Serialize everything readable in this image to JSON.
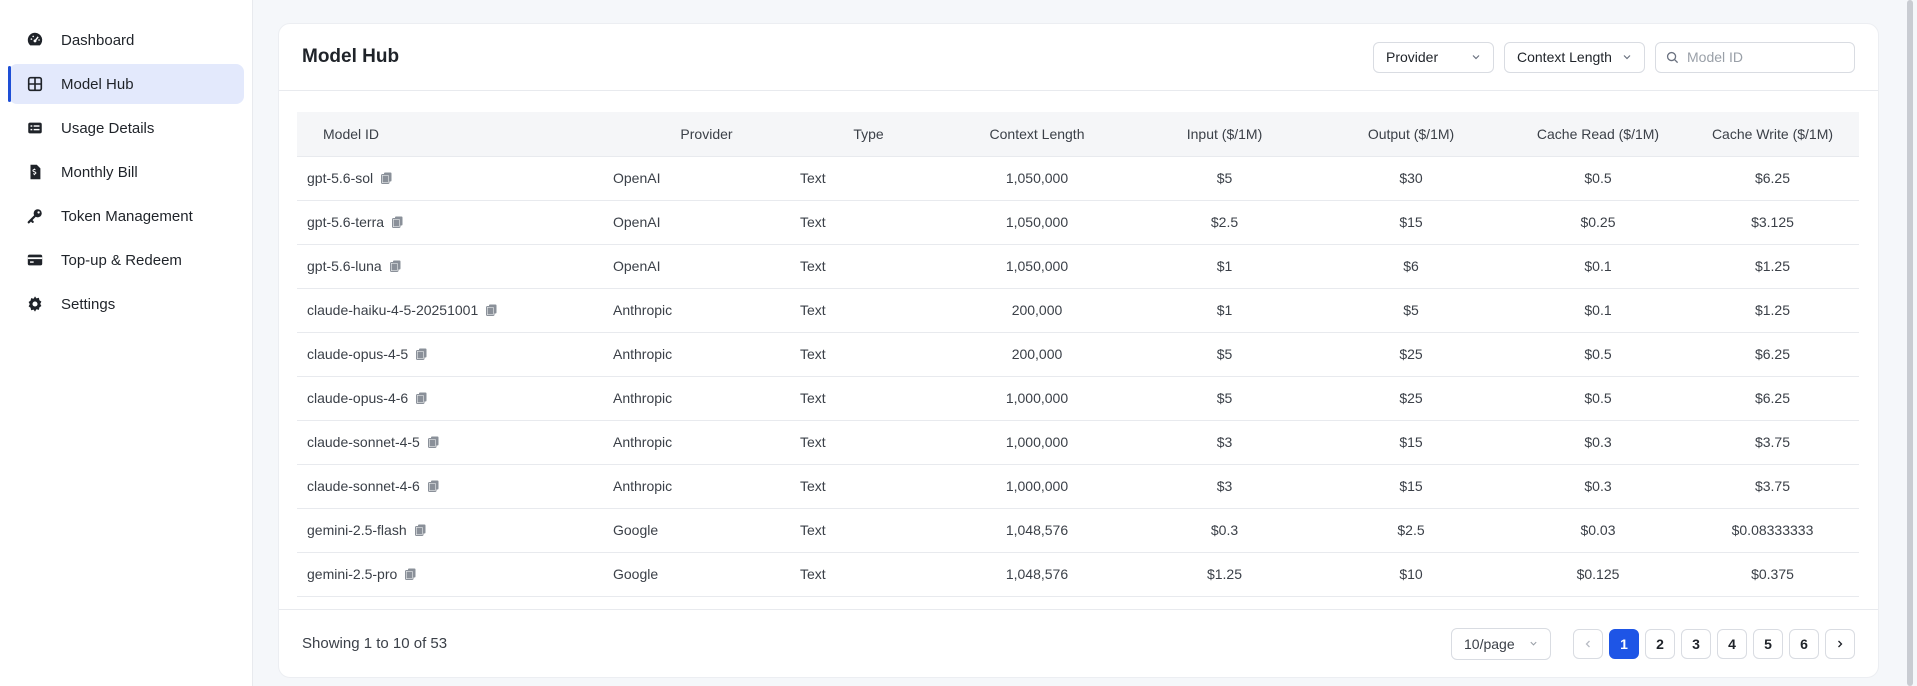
{
  "sidebar": {
    "items": [
      {
        "label": "Dashboard",
        "icon": "dashboard-icon"
      },
      {
        "label": "Model Hub",
        "icon": "grid-icon"
      },
      {
        "label": "Usage Details",
        "icon": "list-icon"
      },
      {
        "label": "Monthly Bill",
        "icon": "bill-icon"
      },
      {
        "label": "Token Management",
        "icon": "key-icon"
      },
      {
        "label": "Top-up & Redeem",
        "icon": "card-icon"
      },
      {
        "label": "Settings",
        "icon": "gear-icon"
      }
    ]
  },
  "header": {
    "title": "Model Hub",
    "provider_filter": "Provider",
    "context_filter": "Context Length",
    "search_placeholder": "Model ID"
  },
  "table": {
    "columns": [
      "Model ID",
      "Provider",
      "Type",
      "Context Length",
      "Input ($/1M)",
      "Output ($/1M)",
      "Cache Read ($/1M)",
      "Cache Write ($/1M)"
    ],
    "rows": [
      [
        "gpt-5.6-sol",
        "OpenAI",
        "Text",
        "1,050,000",
        "$5",
        "$30",
        "$0.5",
        "$6.25"
      ],
      [
        "gpt-5.6-terra",
        "OpenAI",
        "Text",
        "1,050,000",
        "$2.5",
        "$15",
        "$0.25",
        "$3.125"
      ],
      [
        "gpt-5.6-luna",
        "OpenAI",
        "Text",
        "1,050,000",
        "$1",
        "$6",
        "$0.1",
        "$1.25"
      ],
      [
        "claude-haiku-4-5-20251001",
        "Anthropic",
        "Text",
        "200,000",
        "$1",
        "$5",
        "$0.1",
        "$1.25"
      ],
      [
        "claude-opus-4-5",
        "Anthropic",
        "Text",
        "200,000",
        "$5",
        "$25",
        "$0.5",
        "$6.25"
      ],
      [
        "claude-opus-4-6",
        "Anthropic",
        "Text",
        "1,000,000",
        "$5",
        "$25",
        "$0.5",
        "$6.25"
      ],
      [
        "claude-sonnet-4-5",
        "Anthropic",
        "Text",
        "1,000,000",
        "$3",
        "$15",
        "$0.3",
        "$3.75"
      ],
      [
        "claude-sonnet-4-6",
        "Anthropic",
        "Text",
        "1,000,000",
        "$3",
        "$15",
        "$0.3",
        "$3.75"
      ],
      [
        "gemini-2.5-flash",
        "Google",
        "Text",
        "1,048,576",
        "$0.3",
        "$2.5",
        "$0.03",
        "$0.08333333"
      ],
      [
        "gemini-2.5-pro",
        "Google",
        "Text",
        "1,048,576",
        "$1.25",
        "$10",
        "$0.125",
        "$0.375"
      ]
    ]
  },
  "footer": {
    "showing": "Showing 1 to 10 of 53",
    "per_page": "10/page",
    "pages": [
      "1",
      "2",
      "3",
      "4",
      "5",
      "6"
    ],
    "current_page": "1"
  },
  "colors": {
    "accent": "#1e55e6",
    "active_nav_bg": "#e3e9fc"
  }
}
